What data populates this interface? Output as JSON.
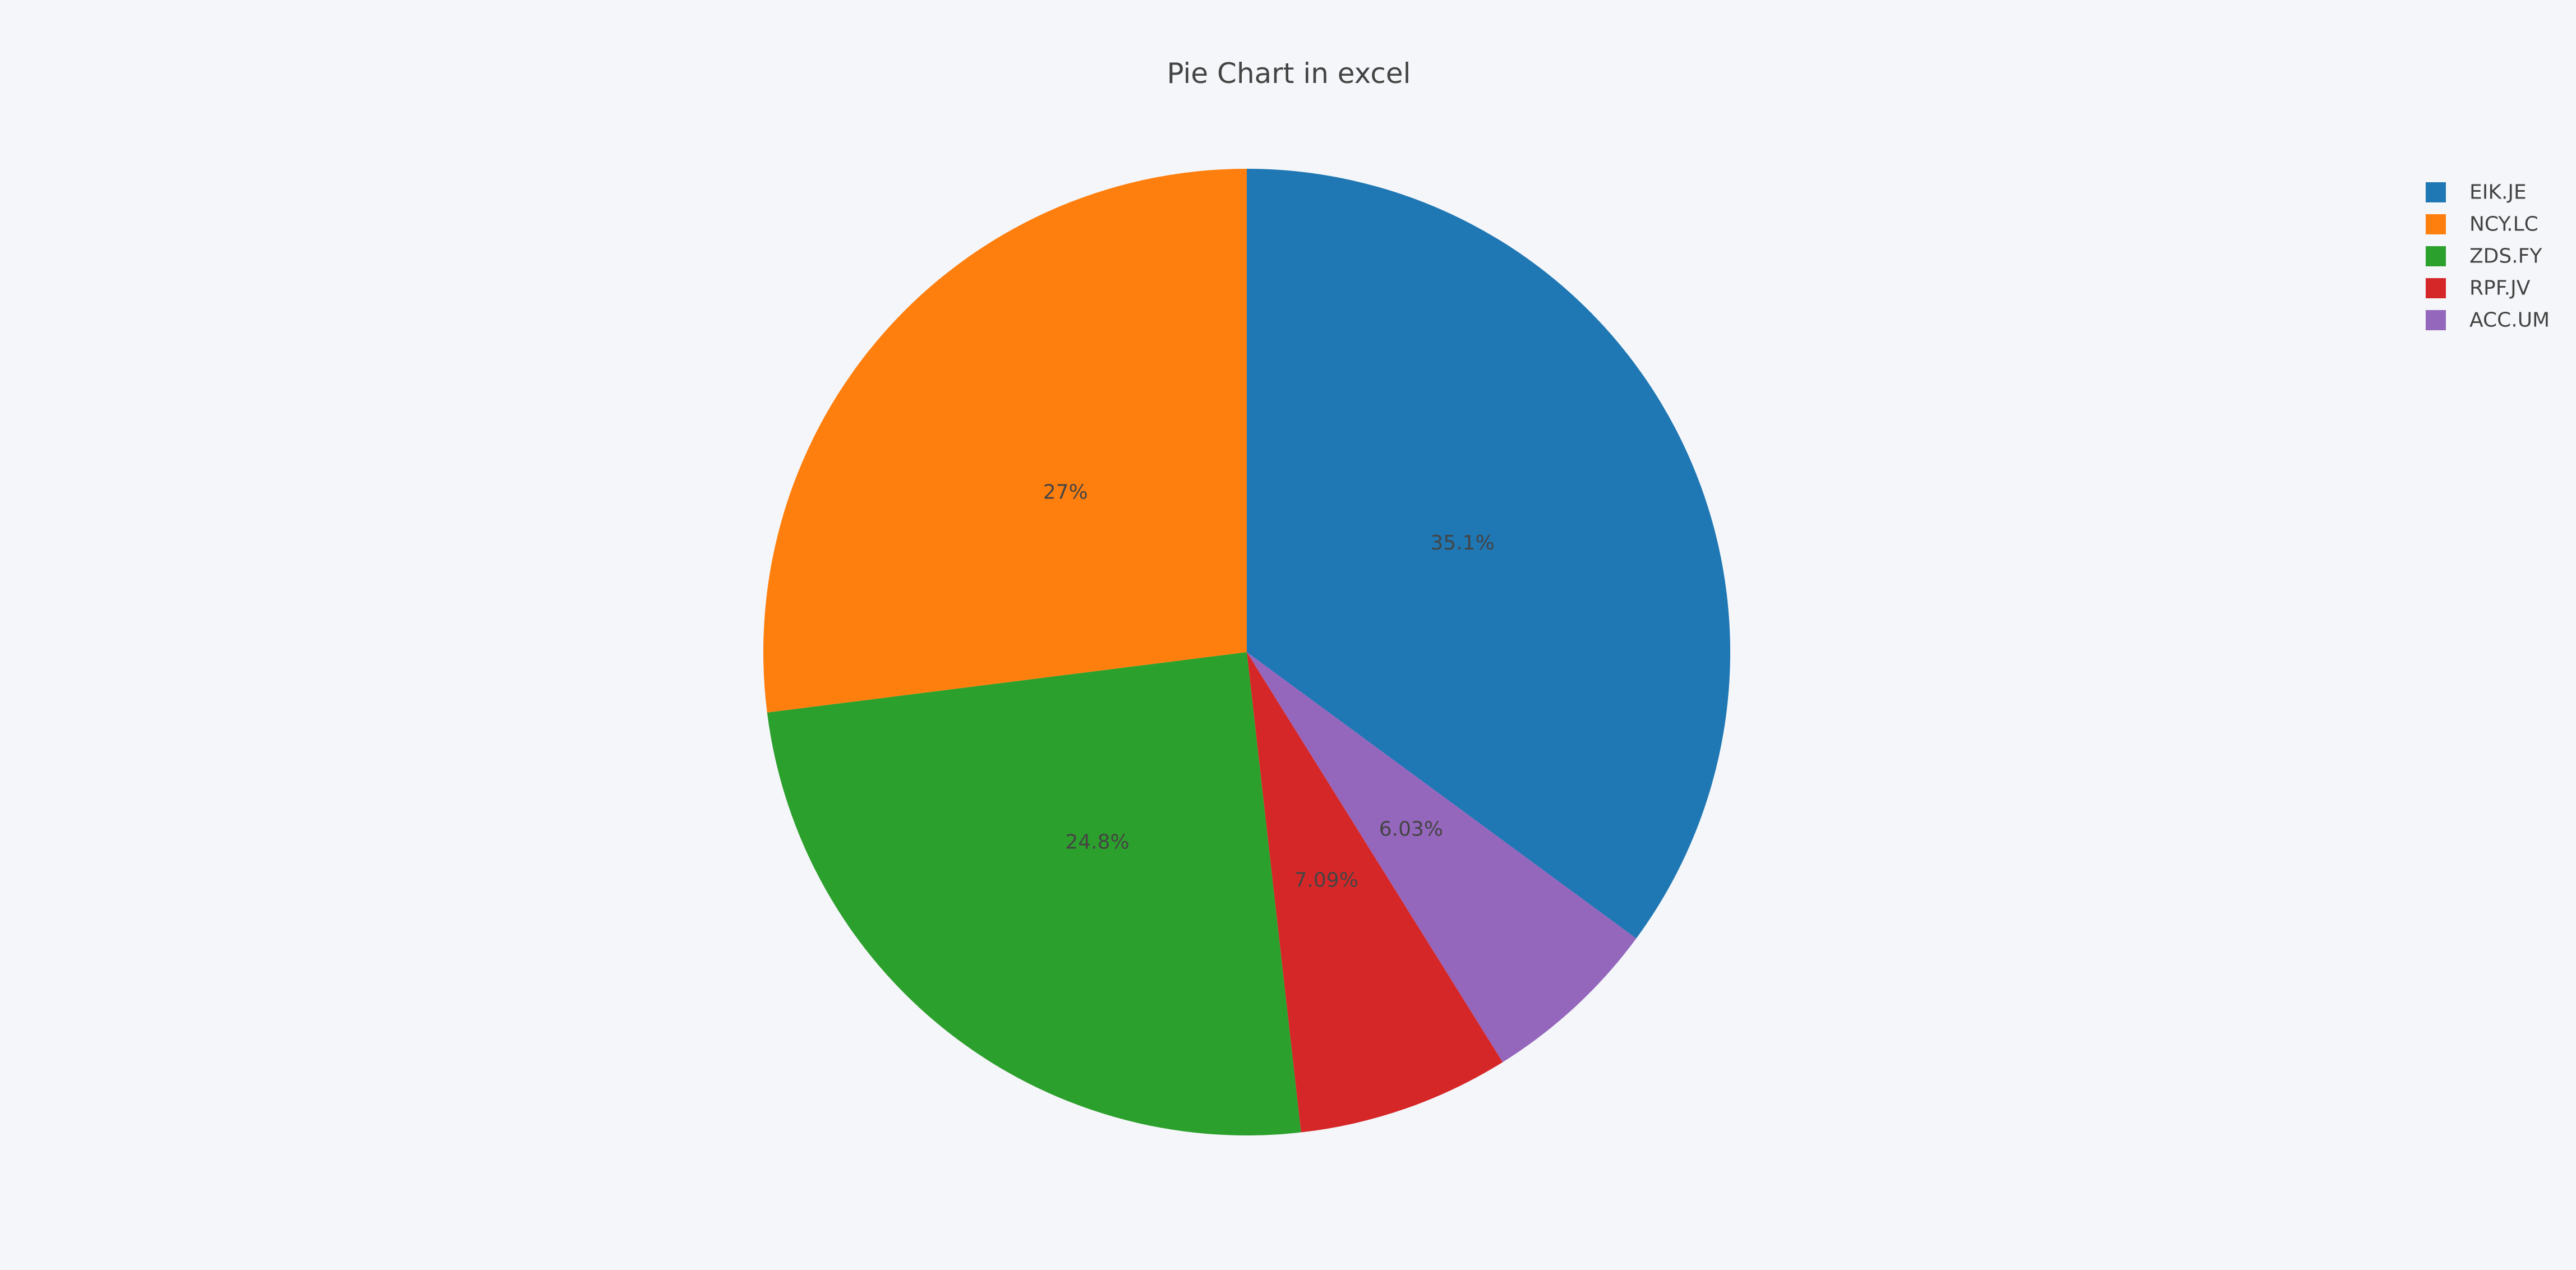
{
  "chart_data": {
    "type": "pie",
    "title": "Pie Chart in excel",
    "categories": [
      "EIK.JE",
      "NCY.LC",
      "ZDS.FY",
      "RPF.JV",
      "ACC.UM"
    ],
    "values": [
      35.1,
      27.0,
      24.8,
      7.09,
      6.03
    ],
    "labels": [
      "35.1%",
      "27%",
      "24.8%",
      "7.09%",
      "6.03%"
    ],
    "colors": [
      "#1f77b4",
      "#ff7f0e",
      "#2ca02c",
      "#d62728",
      "#9467bd"
    ],
    "slice_order": [
      0,
      4,
      3,
      2,
      1
    ],
    "direction": "clockwise",
    "start_angle": "12 o'clock",
    "legend_placement": "top-right"
  }
}
